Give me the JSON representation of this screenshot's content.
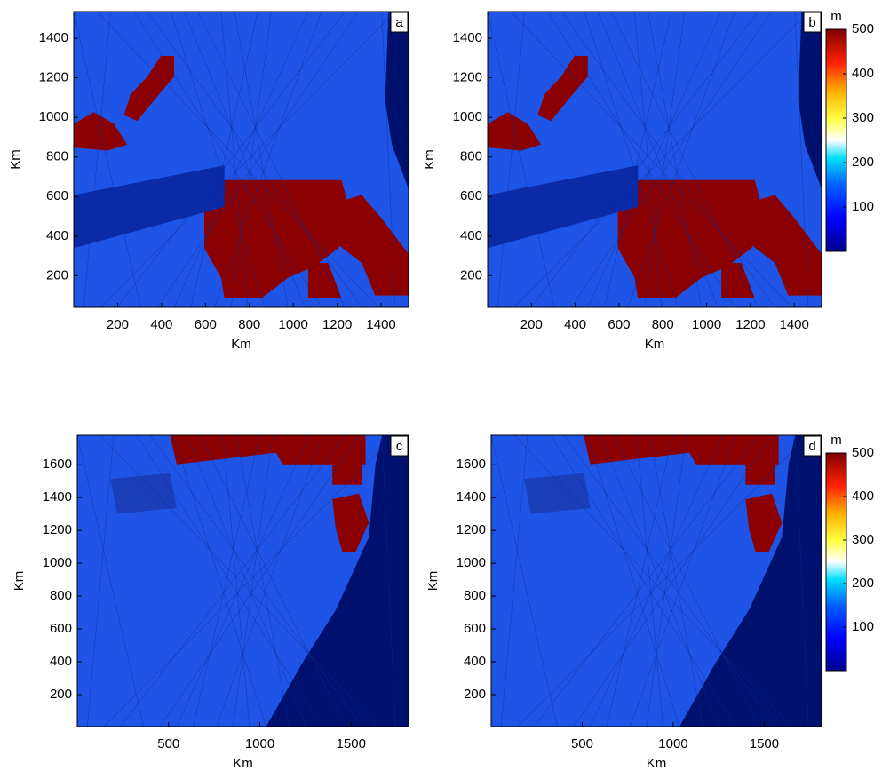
{
  "chart_data": [
    {
      "type": "map",
      "panel_label": "a",
      "xlabel": "Km",
      "ylabel": "Km",
      "xlim": [
        0,
        1525
      ],
      "ylim": [
        40,
        1535
      ],
      "xticks": [
        200,
        400,
        600,
        800,
        1000,
        1200,
        1400
      ],
      "yticks": [
        200,
        400,
        600,
        800,
        1000,
        1200,
        1400
      ]
    },
    {
      "type": "map",
      "panel_label": "b",
      "xlabel": "Km",
      "ylabel": "Km",
      "xlim": [
        0,
        1525
      ],
      "ylim": [
        40,
        1535
      ],
      "xticks": [
        200,
        400,
        600,
        800,
        1000,
        1200,
        1400
      ],
      "yticks": [
        200,
        400,
        600,
        800,
        1000,
        1200,
        1400
      ],
      "colorbar": {
        "label": "m",
        "colormap": "jet",
        "lim": [
          0,
          500
        ],
        "ticks": [
          100,
          200,
          300,
          400,
          500
        ]
      }
    },
    {
      "type": "map",
      "panel_label": "c",
      "xlabel": "Km",
      "ylabel": "Km",
      "xlim": [
        0,
        1815
      ],
      "ylim": [
        5,
        1780
      ],
      "xticks": [
        500,
        1000,
        1500
      ],
      "yticks": [
        200,
        400,
        600,
        800,
        1000,
        1200,
        1400,
        1600
      ]
    },
    {
      "type": "map",
      "panel_label": "d",
      "xlabel": "Km",
      "ylabel": "Km",
      "xlim": [
        0,
        1815
      ],
      "ylim": [
        5,
        1780
      ],
      "xticks": [
        500,
        1000,
        1500
      ],
      "yticks": [
        200,
        400,
        600,
        800,
        1000,
        1200,
        1400,
        1600
      ],
      "colorbar": {
        "label": "m",
        "colormap": "jet",
        "lim": [
          0,
          500
        ],
        "ticks": [
          100,
          200,
          300,
          400,
          500
        ]
      }
    }
  ]
}
